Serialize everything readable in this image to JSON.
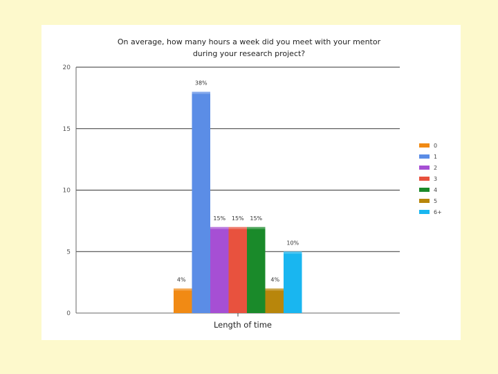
{
  "chart_data": {
    "type": "bar",
    "title_lines": [
      "On average, how many hours a week did you meet with your mentor",
      "during your research project?"
    ],
    "xlabel": "Length of time",
    "ylabel": "",
    "ylim": [
      0,
      20
    ],
    "yticks": [
      0,
      5,
      10,
      15,
      20
    ],
    "grid": true,
    "legend_position": "right",
    "series": [
      {
        "name": "0",
        "value": 2,
        "label": "4%",
        "color": "#f18a14"
      },
      {
        "name": "1",
        "value": 18,
        "label": "38%",
        "color": "#5b8de6"
      },
      {
        "name": "2",
        "value": 7,
        "label": "15%",
        "color": "#a64fd4"
      },
      {
        "name": "3",
        "value": 7,
        "label": "15%",
        "color": "#e8523e"
      },
      {
        "name": "4",
        "value": 7,
        "label": "15%",
        "color": "#1a8a2a"
      },
      {
        "name": "5",
        "value": 2,
        "label": "4%",
        "color": "#b8860b"
      },
      {
        "name": "6+",
        "value": 5,
        "label": "10%",
        "color": "#19b6f0"
      }
    ]
  }
}
